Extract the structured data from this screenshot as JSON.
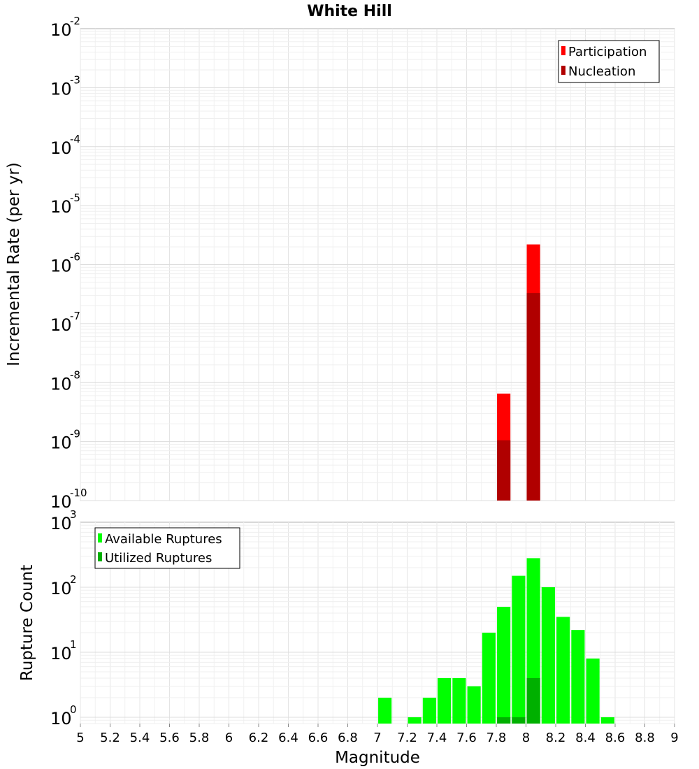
{
  "chart_data": [
    {
      "type": "bar",
      "title": "White Hill",
      "ylabel": "Incremental Rate (per yr)",
      "yscale": "log",
      "ylim": [
        1e-10,
        0.01
      ],
      "ytick_exponents": [
        "-10",
        "-9",
        "-8",
        "-7",
        "-6",
        "-5",
        "-4",
        "-3",
        "-2"
      ],
      "xlim": [
        5,
        9
      ],
      "grid": true,
      "legend": {
        "position": "top-right",
        "entries": [
          "Participation",
          "Nucleation"
        ]
      },
      "colors": {
        "Participation": "#ff0000",
        "Nucleation": "#b00000"
      },
      "series": [
        {
          "name": "Participation",
          "x": [
            7.85,
            8.05
          ],
          "values": [
            6.5e-09,
            2.2e-06
          ]
        },
        {
          "name": "Nucleation",
          "x": [
            7.85,
            8.05
          ],
          "values": [
            1.05e-09,
            3.3e-07
          ]
        }
      ]
    },
    {
      "type": "bar",
      "ylabel": "Rupture Count",
      "xlabel": "Magnitude",
      "yscale": "log",
      "ylim": [
        0.8,
        1000
      ],
      "ytick_base": "10",
      "ytick_exponents": [
        "0",
        "1",
        "2",
        "3"
      ],
      "xlim": [
        5,
        9
      ],
      "xtick_labels": [
        "5",
        "5.2",
        "5.4",
        "5.6",
        "5.8",
        "6",
        "6.2",
        "6.4",
        "6.6",
        "6.8",
        "7",
        "7.2",
        "7.4",
        "7.6",
        "7.8",
        "8",
        "8.2",
        "8.4",
        "8.6",
        "8.8",
        "9"
      ],
      "grid": true,
      "legend": {
        "position": "top-left",
        "entries": [
          "Available Ruptures",
          "Utilized Ruptures"
        ]
      },
      "colors": {
        "Available Ruptures": "#00ff00",
        "Utilized Ruptures": "#00b000"
      },
      "series": [
        {
          "name": "Available Ruptures",
          "x": [
            7.05,
            7.25,
            7.35,
            7.45,
            7.55,
            7.65,
            7.75,
            7.85,
            7.95,
            8.05,
            8.15,
            8.25,
            8.35,
            8.45,
            8.55
          ],
          "values": [
            2,
            1,
            2,
            4,
            4,
            3,
            20,
            50,
            150,
            280,
            100,
            35,
            22,
            8,
            1
          ]
        },
        {
          "name": "Utilized Ruptures",
          "x": [
            7.85,
            7.95,
            8.05
          ],
          "values": [
            1,
            1,
            4
          ]
        }
      ]
    }
  ]
}
